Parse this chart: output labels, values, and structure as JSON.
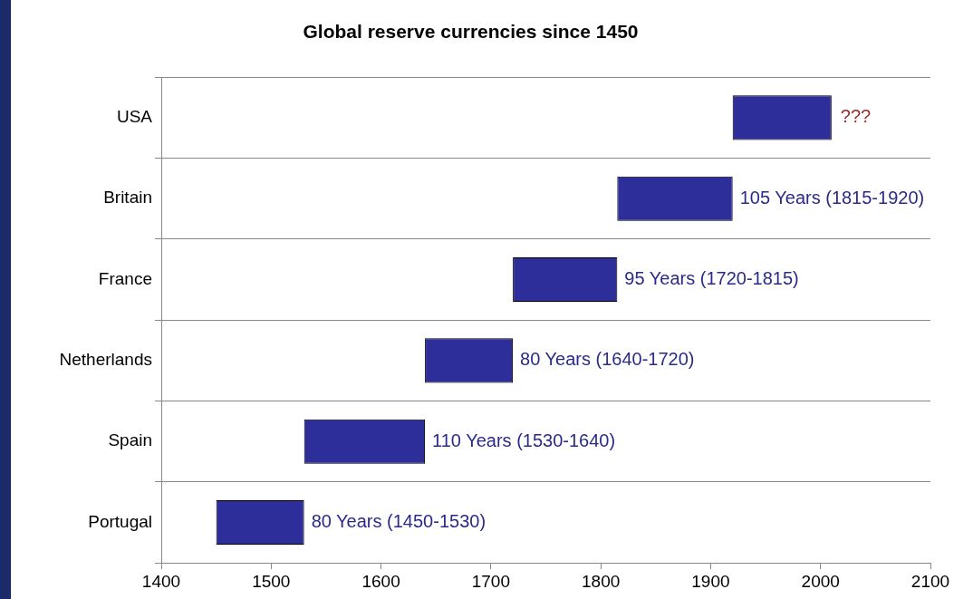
{
  "chart_data": {
    "type": "bar",
    "orientation": "horizontal",
    "title": "Global reserve currencies since 1450",
    "categories": [
      "USA",
      "Britain",
      "France",
      "Netherlands",
      "Spain",
      "Portugal"
    ],
    "base": [
      1920,
      1815,
      1720,
      1640,
      1530,
      1450
    ],
    "values": [
      90,
      105,
      95,
      80,
      110,
      80
    ],
    "color": "#2e2e9a",
    "value_labels": [
      null,
      "105 Years (1815-1920)",
      "95 Years (1720-1815)",
      "80 Years (1640-1720)",
      "110 Years (1530-1640)",
      "80 Years (1450-1530)"
    ],
    "annotations": [
      {
        "text": "???",
        "x": 2010,
        "y": "USA"
      }
    ],
    "xlim": [
      1400,
      2100
    ],
    "xticks": [
      1400,
      1500,
      1600,
      1700,
      1800,
      1900,
      2000,
      2100
    ],
    "grid": "y",
    "legend": false
  }
}
